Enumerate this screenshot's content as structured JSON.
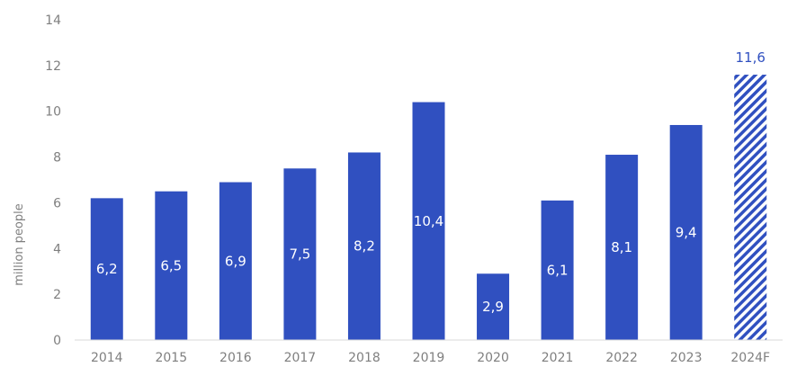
{
  "chart_data": {
    "type": "bar",
    "title": "",
    "xlabel": "",
    "ylabel": "million people",
    "ylim": [
      0,
      14
    ],
    "yticks": [
      0,
      2,
      4,
      6,
      8,
      10,
      12,
      14
    ],
    "grid": false,
    "legend": "none",
    "categories": [
      "2014",
      "2015",
      "2016",
      "2017",
      "2018",
      "2019",
      "2020",
      "2021",
      "2022",
      "2023",
      "2024F"
    ],
    "values": [
      6.2,
      6.5,
      6.9,
      7.5,
      8.2,
      10.4,
      2.9,
      6.1,
      8.1,
      9.4,
      11.6
    ],
    "value_labels": [
      "6,2",
      "6,5",
      "6,9",
      "7,5",
      "8,2",
      "10,4",
      "2,9",
      "6,1",
      "8,1",
      "9,4",
      "11,6"
    ],
    "forecast_flags": [
      false,
      false,
      false,
      false,
      false,
      false,
      false,
      false,
      false,
      false,
      true
    ],
    "colors": {
      "bar": "#3050c0",
      "forecast_hatch": "#3050c0",
      "axis": "#d9d9d9",
      "text": "#7f7f7f"
    }
  }
}
